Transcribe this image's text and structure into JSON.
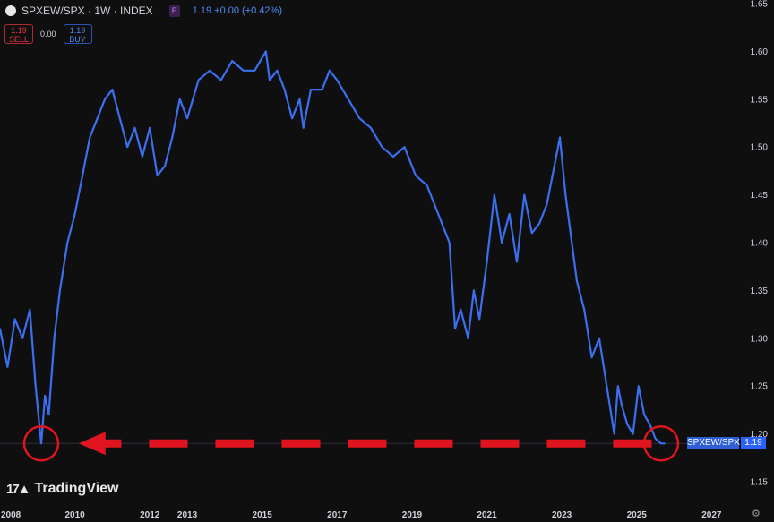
{
  "header": {
    "title": "SPXEW/SPX · 1W · INDEX",
    "badge": "E",
    "quote": "1.19 +0.00 (+0.42%)"
  },
  "trade": {
    "sell_value": "1.19",
    "sell_label": "SELL",
    "spread": "0.00",
    "buy_value": "1.19",
    "buy_label": "BUY"
  },
  "price_tag": {
    "symbol": "SPXEW/SPX",
    "value": "1.19"
  },
  "branding": {
    "name": "TradingView"
  },
  "colors": {
    "line": "#3b6ff0",
    "annotation": "#e0141e",
    "background": "#0f0f10",
    "price_tag": "#2962ff"
  },
  "icons": {
    "settings": "gear-icon",
    "logo": "tradingview-logo-icon"
  },
  "chart_data": {
    "type": "line",
    "title": "",
    "xlabel": "",
    "ylabel": "",
    "xlim": [
      2008.0,
      2027.9
    ],
    "ylim": [
      1.15,
      1.65
    ],
    "x_ticks": [
      "2008",
      "2010",
      "2012",
      "2013",
      "2015",
      "2017",
      "2019",
      "2021",
      "2023",
      "2025",
      "2027"
    ],
    "x_tick_values": [
      2008.0,
      2010.0,
      2012.0,
      2013.0,
      2015.0,
      2017.0,
      2019.0,
      2021.0,
      2023.0,
      2025.0,
      2027.0
    ],
    "y_ticks": [
      1.15,
      1.2,
      1.25,
      1.3,
      1.35,
      1.4,
      1.45,
      1.5,
      1.55,
      1.6,
      1.65
    ],
    "grid": false,
    "legend": "none",
    "series": [
      {
        "name": "SPXEW/SPX",
        "x": [
          2008.0,
          2008.2,
          2008.4,
          2008.6,
          2008.8,
          2008.95,
          2009.1,
          2009.2,
          2009.3,
          2009.45,
          2009.6,
          2009.8,
          2010.0,
          2010.2,
          2010.4,
          2010.6,
          2010.8,
          2011.0,
          2011.2,
          2011.4,
          2011.6,
          2011.8,
          2012.0,
          2012.2,
          2012.4,
          2012.6,
          2012.8,
          2013.0,
          2013.3,
          2013.6,
          2013.9,
          2014.2,
          2014.5,
          2014.8,
          2015.1,
          2015.2,
          2015.4,
          2015.6,
          2015.8,
          2016.0,
          2016.1,
          2016.3,
          2016.6,
          2016.8,
          2017.0,
          2017.3,
          2017.6,
          2017.9,
          2018.2,
          2018.5,
          2018.8,
          2019.1,
          2019.4,
          2019.7,
          2020.0,
          2020.15,
          2020.3,
          2020.5,
          2020.65,
          2020.8,
          2021.0,
          2021.2,
          2021.4,
          2021.6,
          2021.8,
          2022.0,
          2022.2,
          2022.4,
          2022.6,
          2022.8,
          2022.95,
          2023.1,
          2023.2,
          2023.4,
          2023.6,
          2023.8,
          2024.0,
          2024.2,
          2024.4,
          2024.5,
          2024.6,
          2024.75,
          2024.9,
          2025.05,
          2025.2,
          2025.35,
          2025.5,
          2025.65,
          2025.75
        ],
        "y": [
          1.31,
          1.27,
          1.32,
          1.3,
          1.33,
          1.25,
          1.19,
          1.24,
          1.22,
          1.3,
          1.35,
          1.4,
          1.43,
          1.47,
          1.51,
          1.53,
          1.55,
          1.56,
          1.53,
          1.5,
          1.52,
          1.49,
          1.52,
          1.47,
          1.48,
          1.51,
          1.55,
          1.53,
          1.57,
          1.58,
          1.57,
          1.59,
          1.58,
          1.58,
          1.6,
          1.57,
          1.58,
          1.56,
          1.53,
          1.55,
          1.52,
          1.56,
          1.56,
          1.58,
          1.57,
          1.55,
          1.53,
          1.52,
          1.5,
          1.49,
          1.5,
          1.47,
          1.46,
          1.43,
          1.4,
          1.31,
          1.33,
          1.3,
          1.35,
          1.32,
          1.38,
          1.45,
          1.4,
          1.43,
          1.38,
          1.45,
          1.41,
          1.42,
          1.44,
          1.48,
          1.51,
          1.45,
          1.42,
          1.36,
          1.33,
          1.28,
          1.3,
          1.25,
          1.2,
          1.25,
          1.23,
          1.21,
          1.2,
          1.25,
          1.22,
          1.21,
          1.195,
          1.19,
          1.19
        ]
      }
    ],
    "annotations": [
      {
        "type": "circle",
        "x": 2009.1,
        "y": 1.19,
        "label": ""
      },
      {
        "type": "circle",
        "x": 2025.65,
        "y": 1.19,
        "label": ""
      },
      {
        "type": "dashed-arrow",
        "from_x": 2025.4,
        "to_x": 2010.1,
        "y": 1.19,
        "label": ""
      }
    ]
  }
}
